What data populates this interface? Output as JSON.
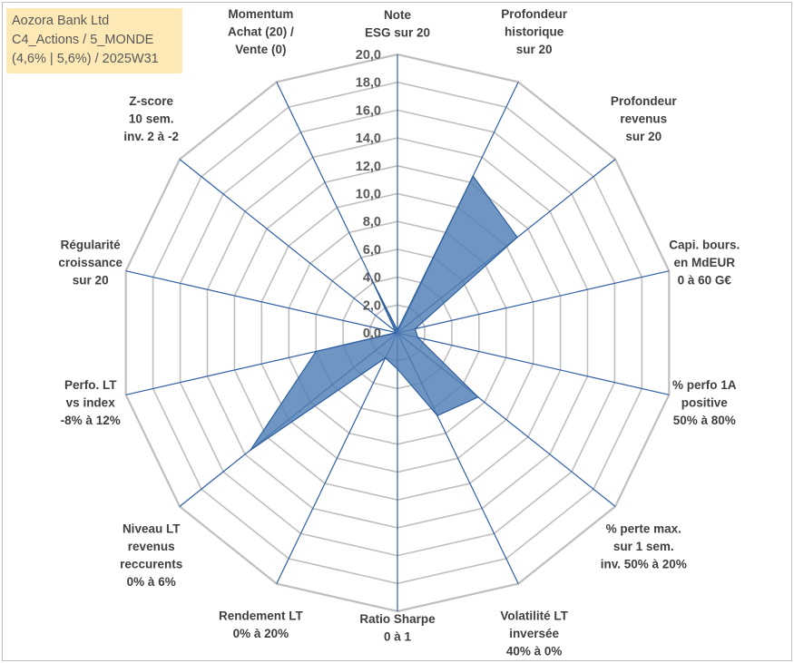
{
  "title_box": {
    "line1": "Aozora Bank Ltd",
    "line2": "C4_Actions / 5_MONDE",
    "line3": "(4,6% | 5,6%) / 2025W31"
  },
  "colors": {
    "fill": "#4f7eb5",
    "stroke": "#2e5f9e",
    "grid": "#bfbfbf",
    "spoke": "#2f5ea5",
    "title_bg": "#fde9b6"
  },
  "chart_data": {
    "type": "radar",
    "rmin": 0,
    "rmax": 20,
    "tick_step": 2,
    "tick_labels": [
      "0,0",
      "2,0",
      "4,0",
      "6,0",
      "8,0",
      "10,0",
      "12,0",
      "14,0",
      "16,0",
      "18,0",
      "20,0"
    ],
    "axes": [
      "Note\nESG sur 20",
      "Profondeur\nhistorique\nsur 20",
      "Profondeur\nrevenus\nsur 20",
      "Capi. bours.\nen MdEUR\n0 à 60 G€",
      "% perfo 1A\npositive\n50% à 80%",
      "% perte max.\nsur 1 sem.\ninv. 50% à 20%",
      "Volatilité LT\ninversée\n40% à 0%",
      "Ratio Sharpe\n0 à 1",
      "Rendement LT\n0% à 20%",
      "Niveau LT\nrevenus\nreccurents\n0% à 6%",
      "Perfo. LT\nvs index\n-8% à 12%",
      "Régularité\ncroissance\nsur 20",
      "Z-score\n10 sem.\ninv. 2 à -2",
      "Momentum\nAchat (20) /\nVente (0)"
    ],
    "values": [
      0.2,
      12.5,
      11.0,
      1.3,
      1.5,
      7.4,
      6.6,
      2.6,
      2.0,
      13.5,
      6.0,
      0.1,
      0.2,
      4.2
    ]
  }
}
